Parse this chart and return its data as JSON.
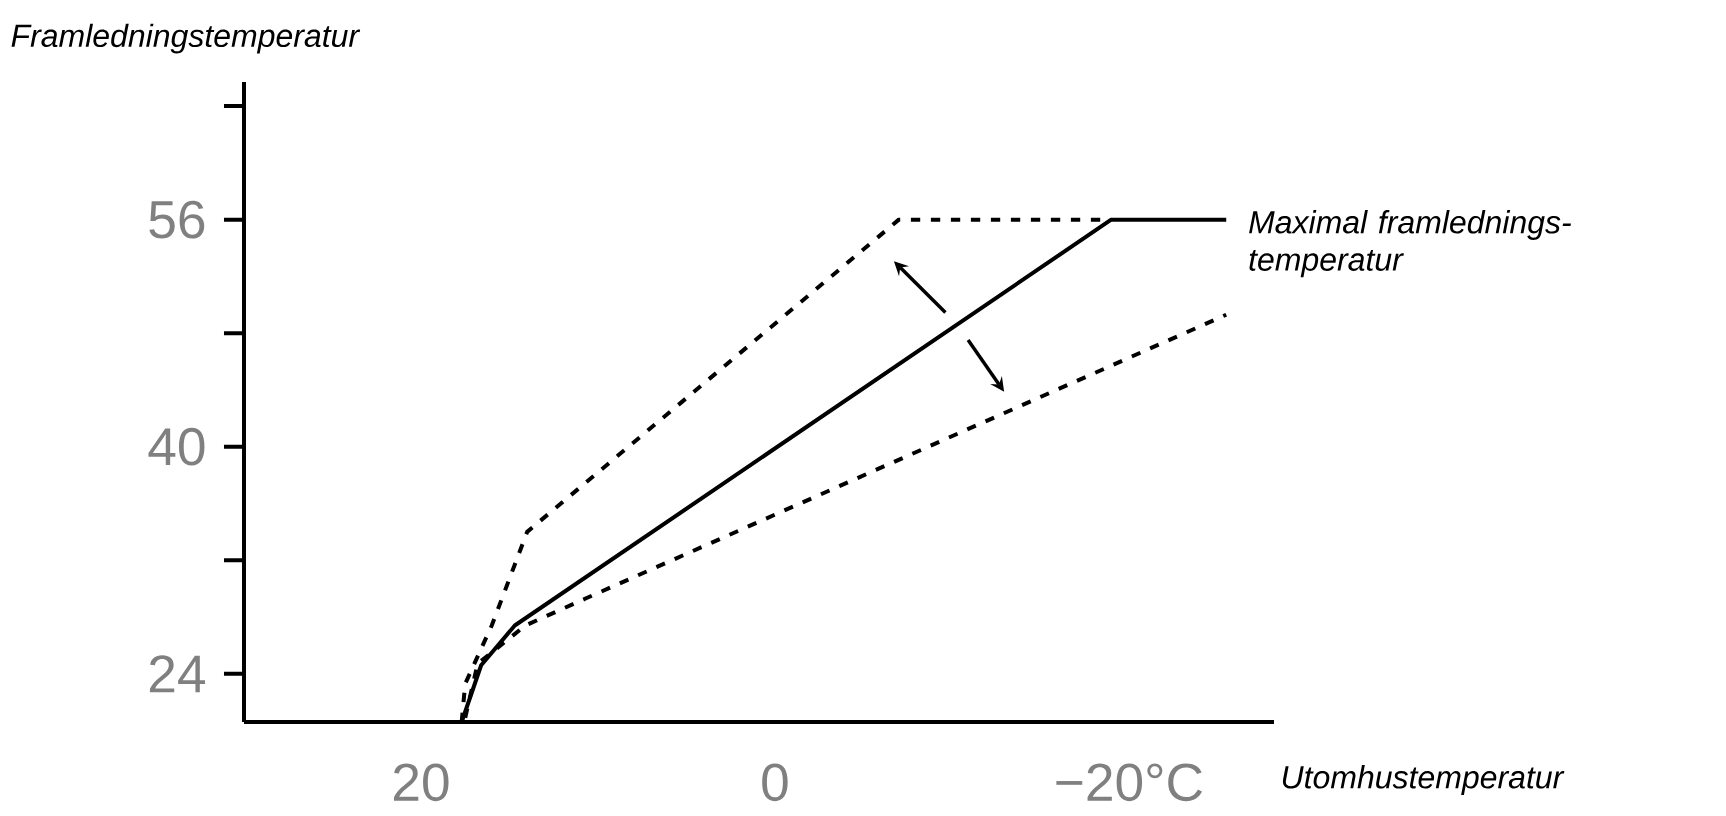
{
  "chart_data": {
    "type": "line",
    "xlabel": "Utomhustemperatur",
    "ylabel": "Framledningstemperatur",
    "xlim": [
      30,
      -28.2
    ],
    "ylim": [
      20.6,
      65.7
    ],
    "xticks": [
      20,
      0,
      {
        "value": -20,
        "label": "−20°C"
      }
    ],
    "yticks": [
      24,
      {
        "value": 32,
        "label": null
      },
      40,
      {
        "value": 48,
        "label": null
      },
      56,
      {
        "value": 64,
        "label": null
      }
    ],
    "grid": false,
    "marker": "none",
    "series": [
      {
        "color": "#000000",
        "line_style": "solid",
        "x": [
          17.7,
          16.6,
          14.7,
          -19,
          -25.5
        ],
        "values": [
          20.6,
          24.6,
          27.4,
          56,
          56
        ]
      },
      {
        "color": "#000000",
        "line_style": "dashed",
        "x": [
          17.7,
          17.5,
          16,
          14,
          -7,
          -19
        ],
        "values": [
          20.6,
          23.3,
          27.4,
          34,
          56,
          56
        ]
      },
      {
        "color": "#000000",
        "line_style": "dashed",
        "x": [
          17.5,
          16.8,
          14.1,
          10.7,
          -25.5
        ],
        "values": [
          20.9,
          24.7,
          27.4,
          29.3,
          49.3
        ]
      }
    ],
    "annotations": [
      {
        "text": "Maximal framlednings- temperatur",
        "x": -25.5,
        "y": 56
      }
    ]
  }
}
